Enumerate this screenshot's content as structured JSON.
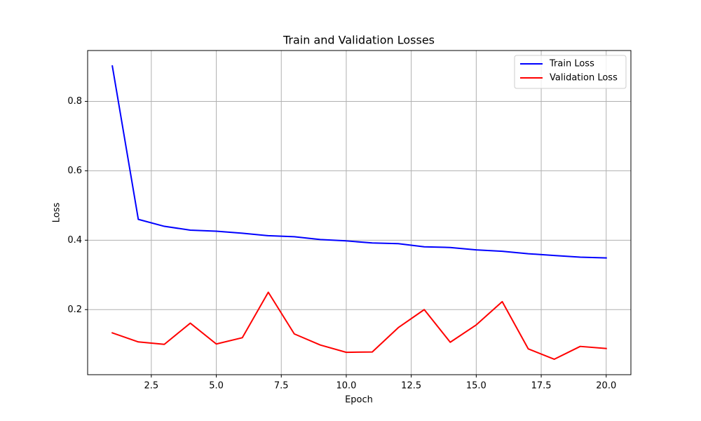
{
  "chart_data": {
    "type": "line",
    "title": "Train and Validation Losses",
    "xlabel": "Epoch",
    "ylabel": "Loss",
    "xlim": [
      0.05,
      20.95
    ],
    "ylim": [
      0.0125,
      0.9465
    ],
    "xticks": [
      2.5,
      5.0,
      7.5,
      10.0,
      12.5,
      15.0,
      17.5,
      20.0
    ],
    "xtick_labels": [
      "2.5",
      "5.0",
      "7.5",
      "10.0",
      "12.5",
      "15.0",
      "17.5",
      "20.0"
    ],
    "yticks": [
      0.2,
      0.4,
      0.6,
      0.8
    ],
    "ytick_labels": [
      "0.2",
      "0.4",
      "0.6",
      "0.8"
    ],
    "grid": true,
    "legend": "top-right",
    "x": [
      1,
      2,
      3,
      4,
      5,
      6,
      7,
      8,
      9,
      10,
      11,
      12,
      13,
      14,
      15,
      16,
      17,
      18,
      19,
      20
    ],
    "series": [
      {
        "name": "Train Loss",
        "color": "#0000ff",
        "values": [
          0.902,
          0.46,
          0.44,
          0.429,
          0.426,
          0.42,
          0.413,
          0.41,
          0.402,
          0.398,
          0.392,
          0.39,
          0.381,
          0.379,
          0.372,
          0.368,
          0.361,
          0.356,
          0.351,
          0.349
        ]
      },
      {
        "name": "Validation Loss",
        "color": "#ff0000",
        "values": [
          0.133,
          0.107,
          0.1,
          0.161,
          0.101,
          0.119,
          0.25,
          0.13,
          0.098,
          0.077,
          0.078,
          0.148,
          0.2,
          0.106,
          0.156,
          0.223,
          0.087,
          0.057,
          0.094,
          0.088
        ]
      }
    ]
  }
}
